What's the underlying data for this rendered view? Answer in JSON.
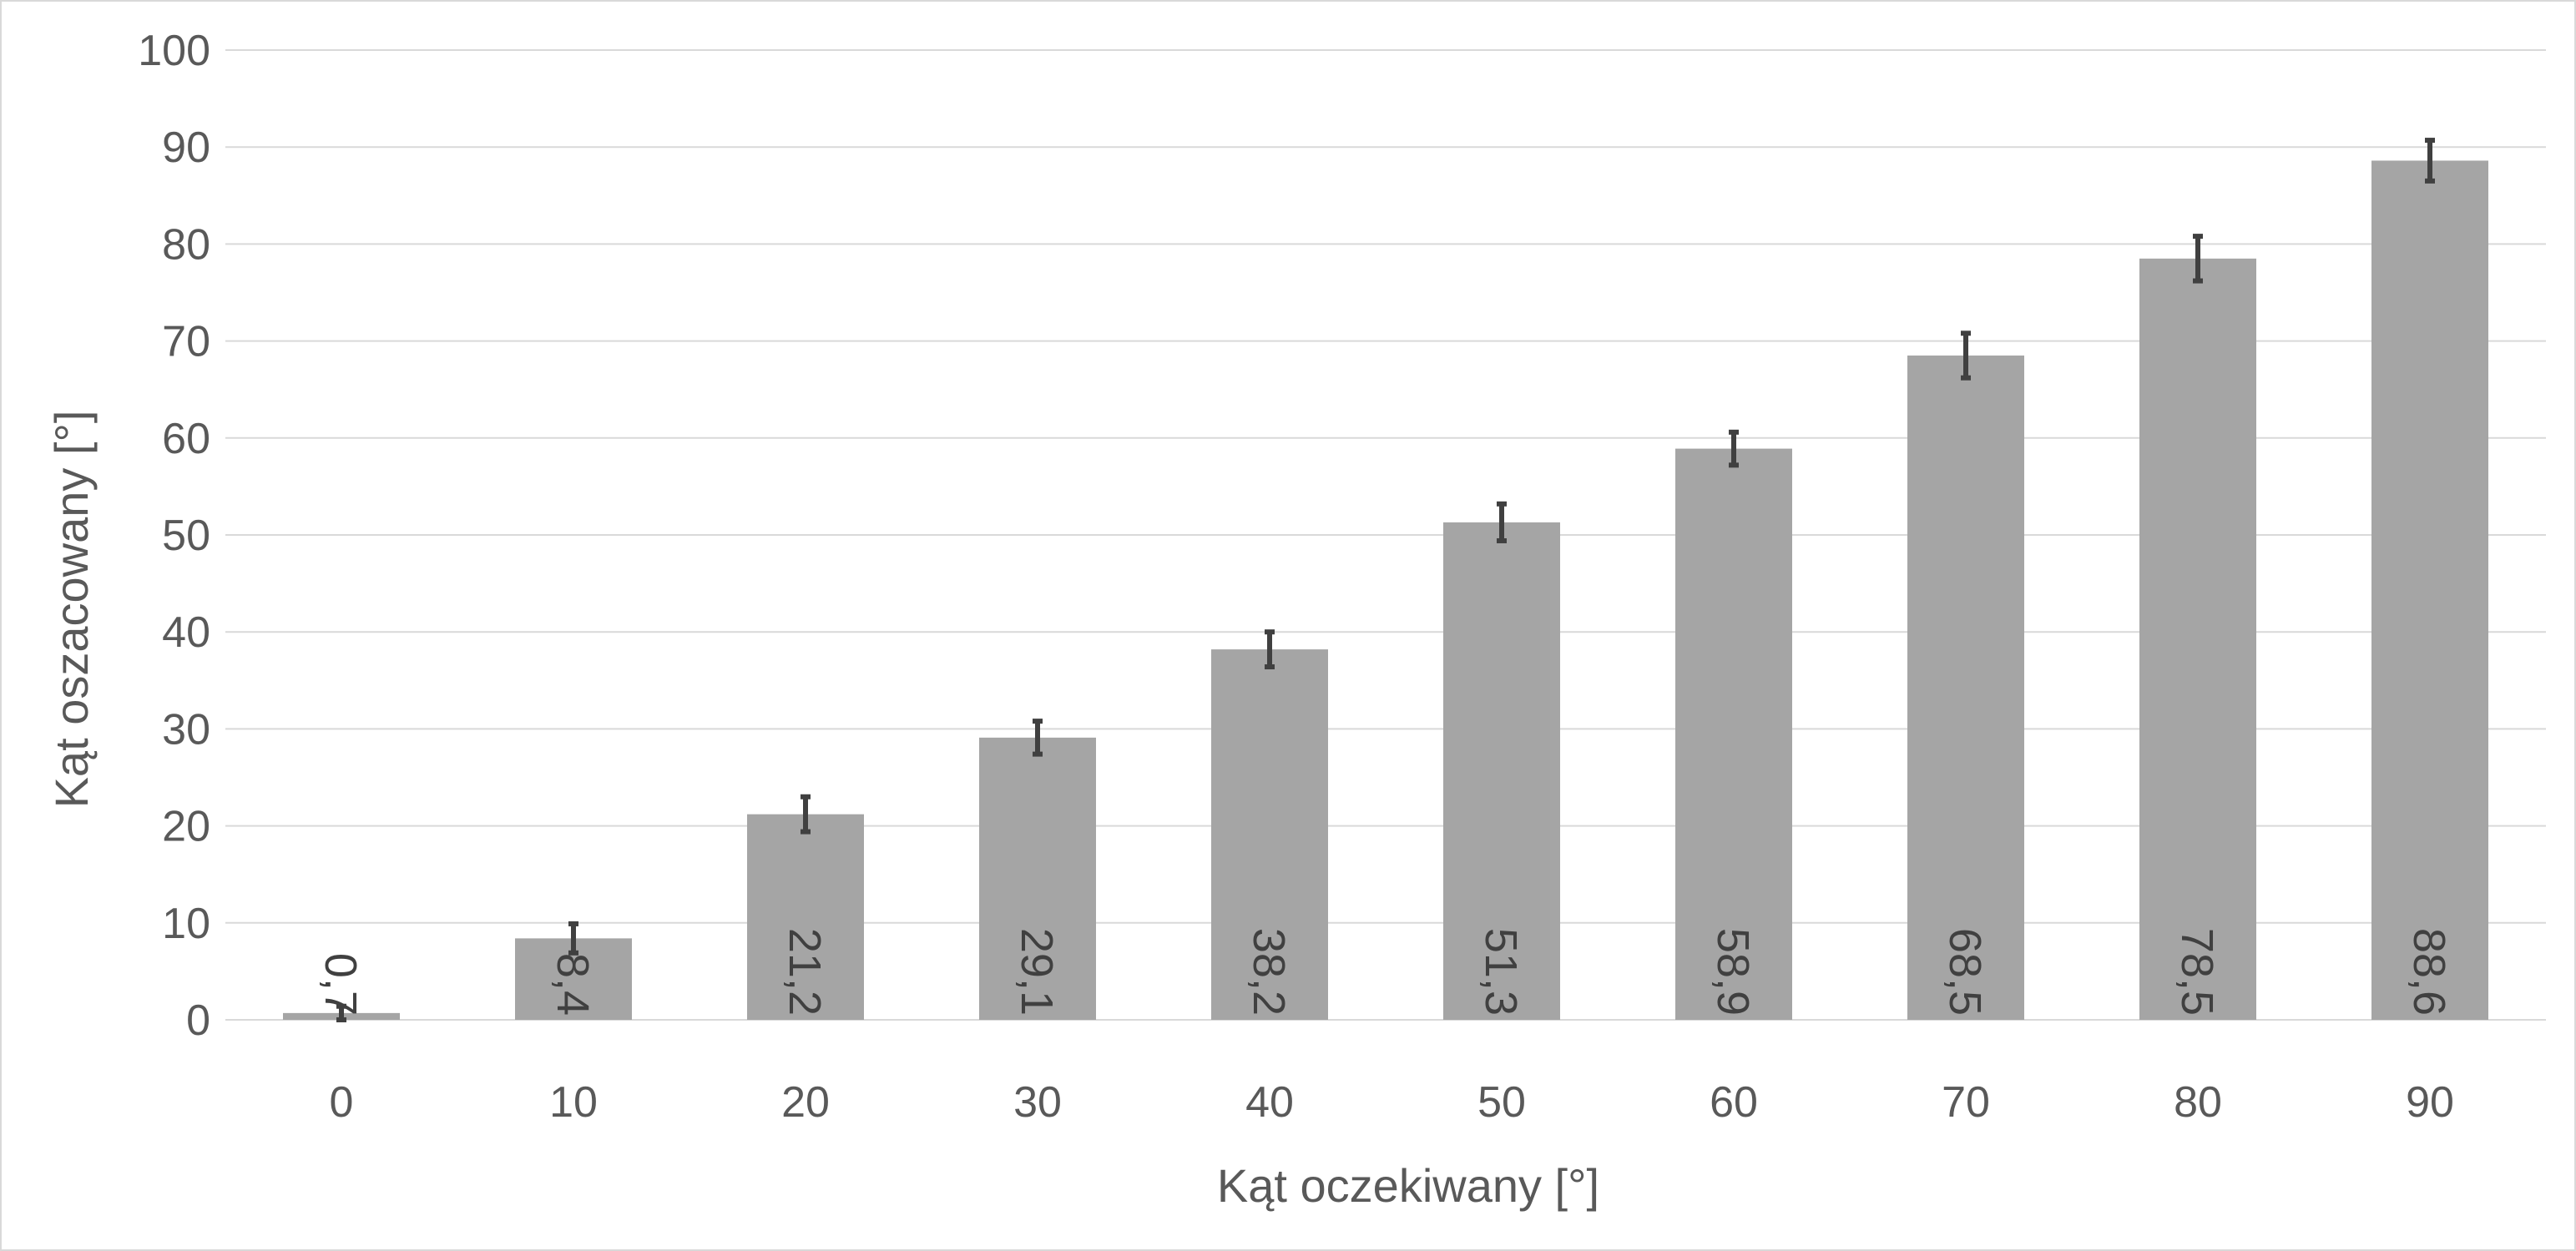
{
  "chart_data": {
    "type": "bar",
    "title": "",
    "xlabel": "Kąt oczekiwany [°]",
    "ylabel": "Kąt oszacowany [°]",
    "categories": [
      "0",
      "10",
      "20",
      "30",
      "40",
      "50",
      "60",
      "70",
      "80",
      "90"
    ],
    "values": [
      0.7,
      8.4,
      21.2,
      29.1,
      38.2,
      51.3,
      58.9,
      68.5,
      78.5,
      88.6
    ],
    "data_labels": [
      "0,7",
      "8,4",
      "21,2",
      "29,1",
      "38,2",
      "51,3",
      "58,9",
      "68,5",
      "78,5",
      "88,6"
    ],
    "error": [
      0.7,
      1.5,
      1.8,
      1.7,
      1.8,
      1.9,
      1.7,
      2.3,
      2.3,
      2.1
    ],
    "ylim": [
      0,
      100
    ],
    "yticks": [
      0,
      10,
      20,
      30,
      40,
      50,
      60,
      70,
      80,
      90,
      100
    ],
    "grid": true,
    "legend": "none",
    "colors": {
      "bar": "#a5a5a5",
      "error_bar": "#404040",
      "grid": "#d9d9d9",
      "text": "#595959"
    }
  }
}
